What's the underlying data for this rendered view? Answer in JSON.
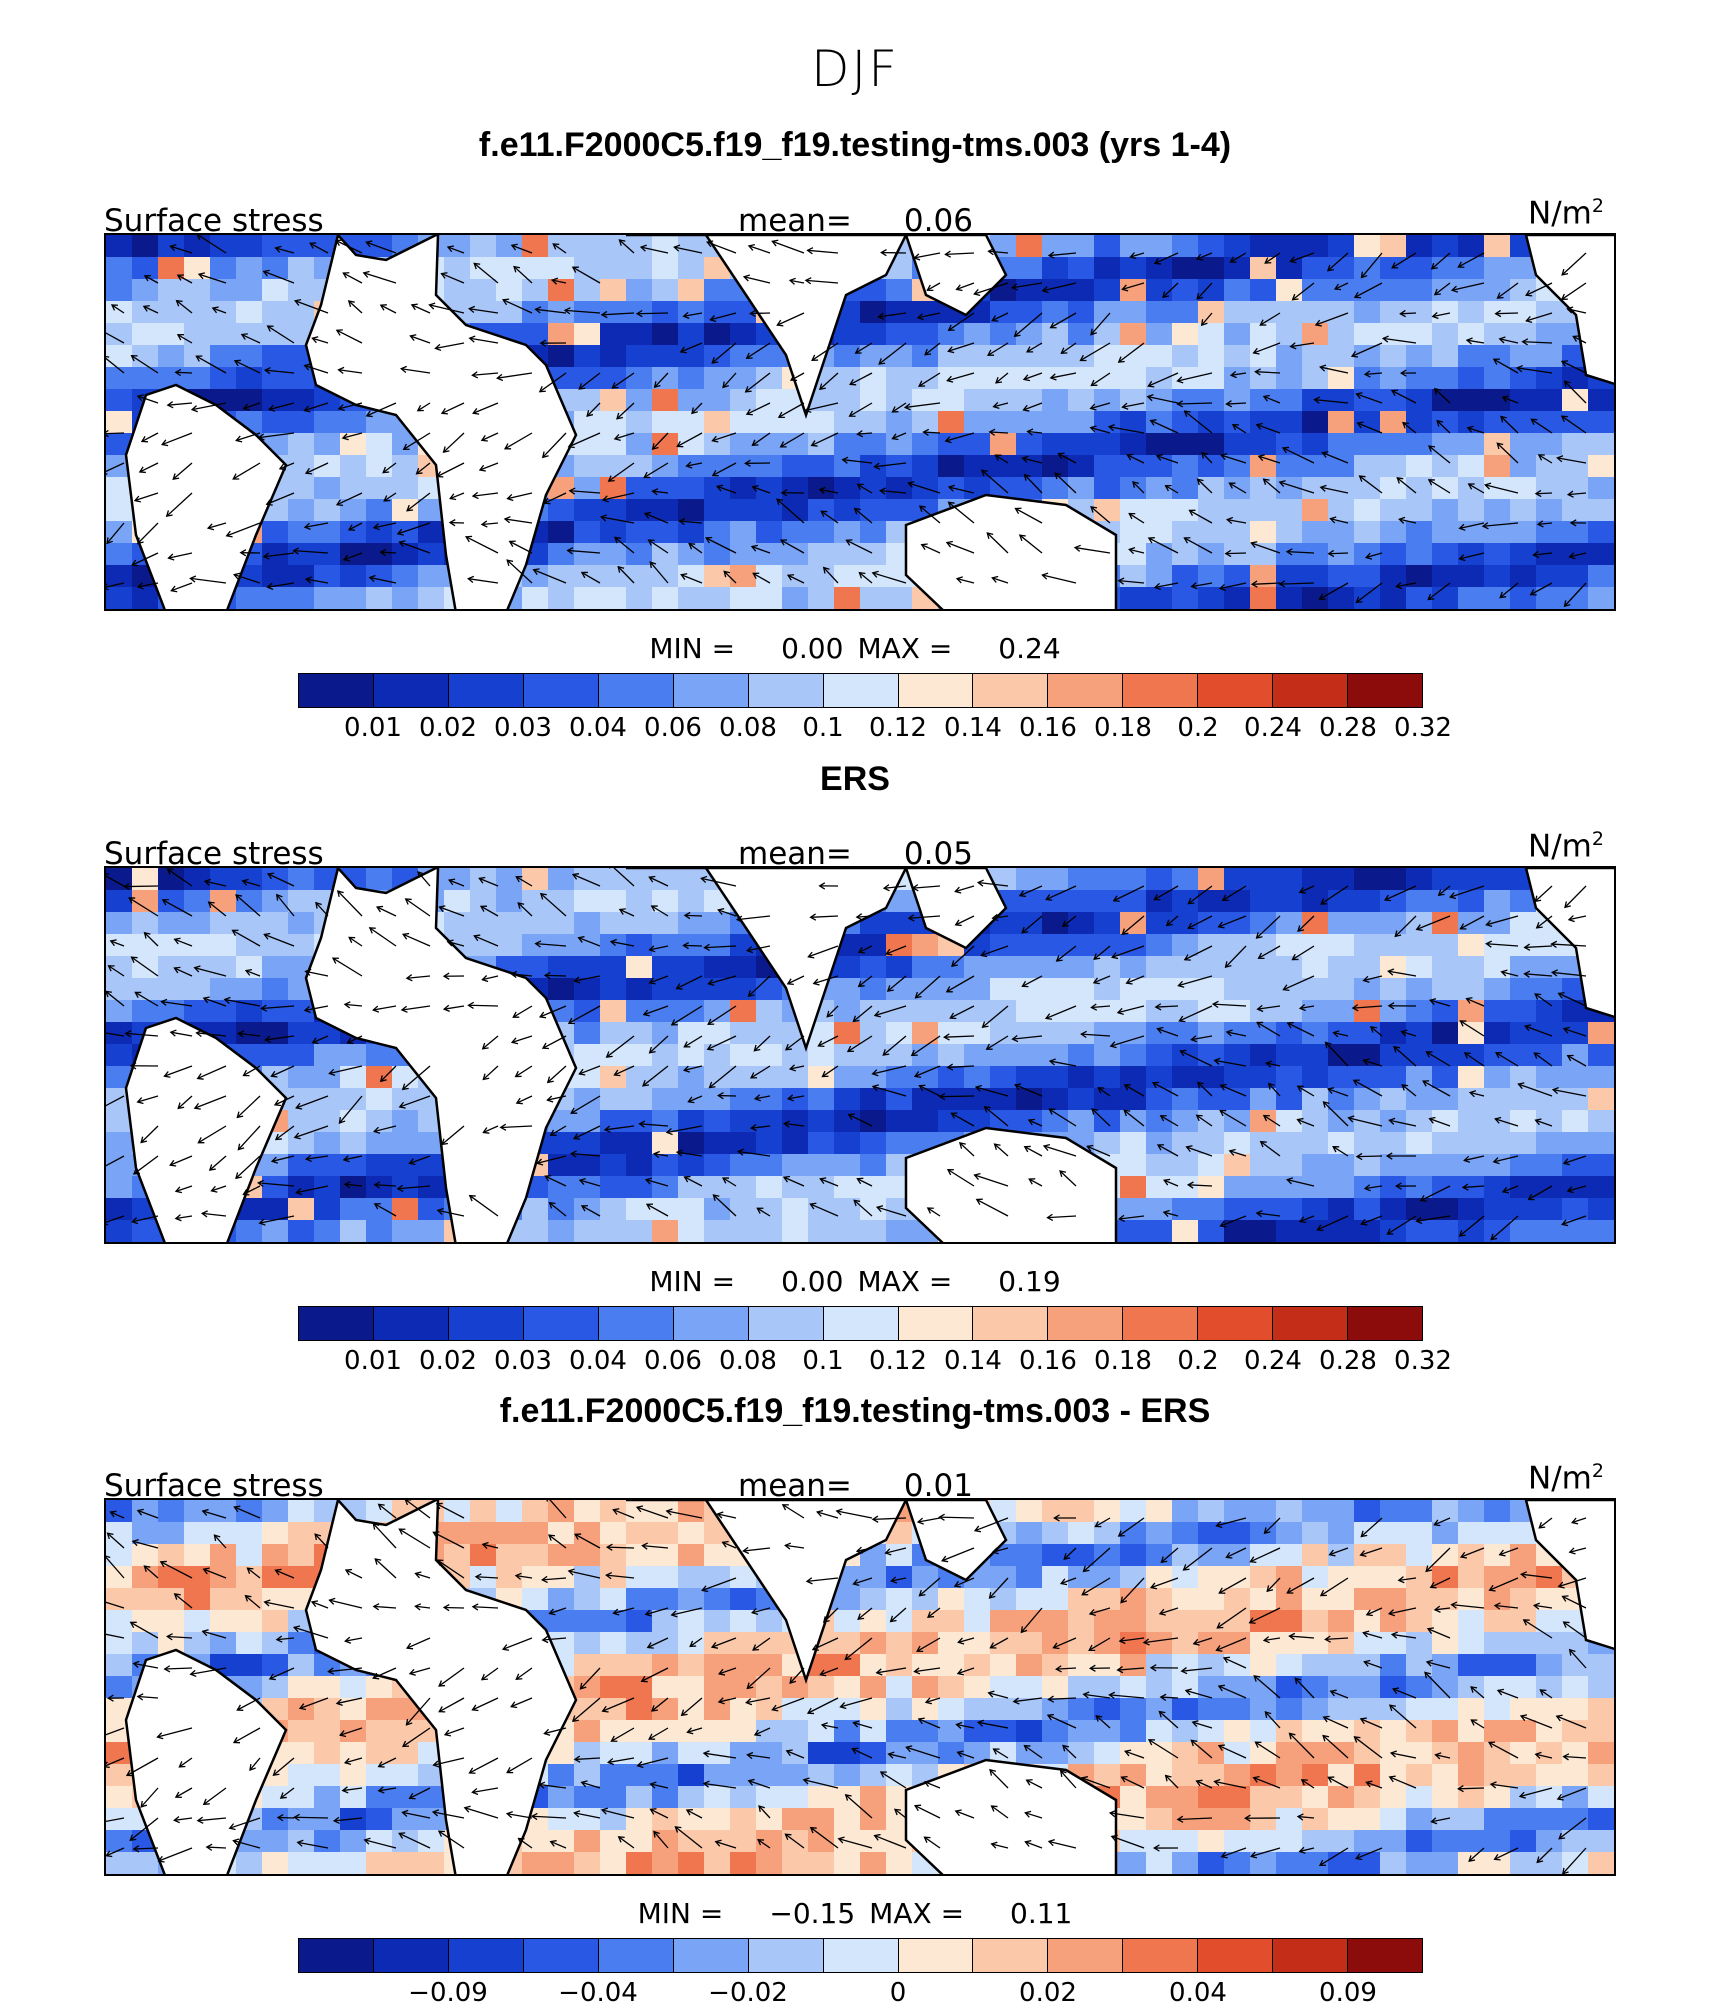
{
  "season": "DJF",
  "panels": [
    {
      "title": "f.e11.F2000C5.f19_f19.testing-tms.003 (yrs 1-4)",
      "left_label": "Surface stress",
      "mean_label": "mean=",
      "mean_value": "0.06",
      "units": "N/m",
      "units_sup": "2",
      "min_label": "MIN =",
      "min_value": "0.00",
      "max_label": "MAX =",
      "max_value": "0.24",
      "colorbar_ticks": [
        "0.01",
        "0.02",
        "0.03",
        "0.04",
        "0.06",
        "0.08",
        "0.1",
        "0.12",
        "0.14",
        "0.16",
        "0.18",
        "0.2",
        "0.24",
        "0.28",
        "0.32"
      ],
      "colorbar_colors": [
        "#0a1a8c",
        "#0c2ab4",
        "#1540d0",
        "#2858e4",
        "#4a7ef0",
        "#7aa4f6",
        "#a8c6f8",
        "#d4e6fc",
        "#fde8d4",
        "#fbc8aa",
        "#f7a07c",
        "#f07650",
        "#e24e2c",
        "#c42e18",
        "#8c0c0c"
      ]
    },
    {
      "title": "ERS",
      "left_label": "Surface stress",
      "mean_label": "mean=",
      "mean_value": "0.05",
      "units": "N/m",
      "units_sup": "2",
      "min_label": "MIN =",
      "min_value": "0.00",
      "max_label": "MAX =",
      "max_value": "0.19",
      "colorbar_ticks": [
        "0.01",
        "0.02",
        "0.03",
        "0.04",
        "0.06",
        "0.08",
        "0.1",
        "0.12",
        "0.14",
        "0.16",
        "0.18",
        "0.2",
        "0.24",
        "0.28",
        "0.32"
      ],
      "colorbar_colors": [
        "#0a1a8c",
        "#0c2ab4",
        "#1540d0",
        "#2858e4",
        "#4a7ef0",
        "#7aa4f6",
        "#a8c6f8",
        "#d4e6fc",
        "#fde8d4",
        "#fbc8aa",
        "#f7a07c",
        "#f07650",
        "#e24e2c",
        "#c42e18",
        "#8c0c0c"
      ]
    },
    {
      "title": "f.e11.F2000C5.f19_f19.testing-tms.003 - ERS",
      "left_label": "Surface stress",
      "mean_label": "mean=",
      "mean_value": "0.01",
      "units": "N/m",
      "units_sup": "2",
      "min_label": "MIN =",
      "min_value": "−0.15",
      "max_label": "MAX =",
      "max_value": "0.11",
      "colorbar_ticks": [
        "",
        "−0.09",
        "",
        "−0.04",
        "",
        "−0.02",
        "",
        "0",
        "",
        "0.02",
        "",
        "0.04",
        "",
        "0.09"
      ],
      "colorbar_colors": [
        "#0a1a8c",
        "#0c2ab4",
        "#1540d0",
        "#2858e4",
        "#4a7ef0",
        "#7aa4f6",
        "#a8c6f8",
        "#d4e6fc",
        "#fde8d4",
        "#fbc8aa",
        "#f7a07c",
        "#f07650",
        "#e24e2c",
        "#c42e18",
        "#8c0c0c"
      ]
    }
  ]
}
